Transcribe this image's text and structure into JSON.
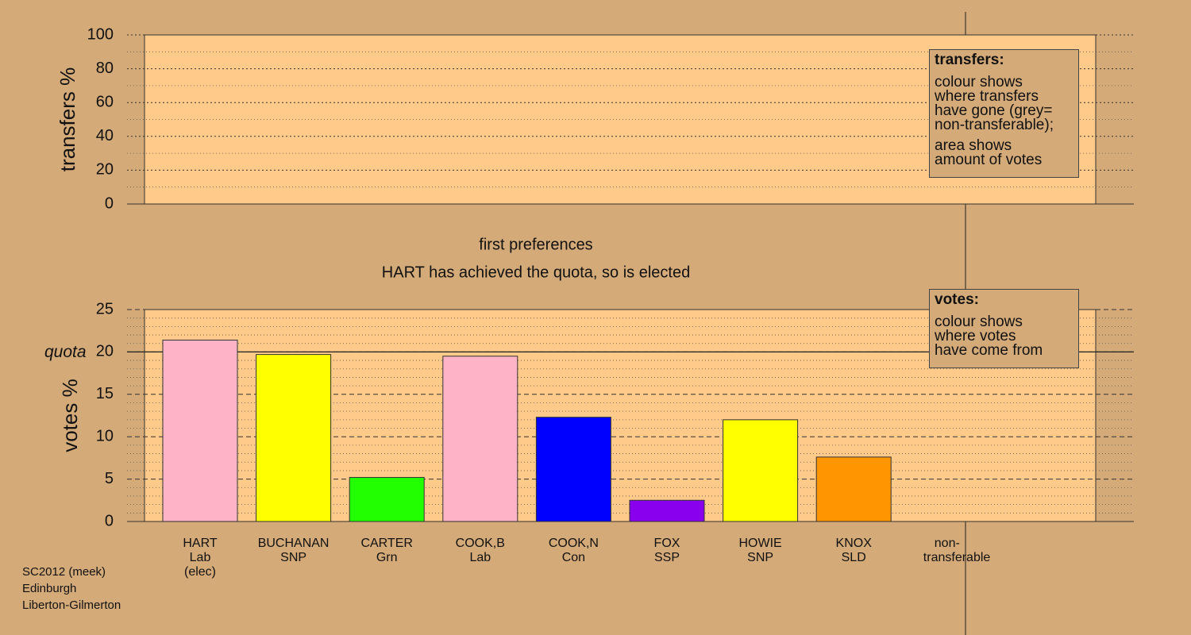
{
  "chart_data": [
    {
      "type": "bar",
      "ylabel": "transfers %",
      "ylim": [
        0,
        100
      ],
      "yticks": [
        0,
        20,
        40,
        60,
        80,
        100
      ],
      "legend": {
        "title": "transfers:",
        "paragraphs": [
          [
            "colour shows",
            "where transfers",
            "have gone (grey=",
            "non-transferable);"
          ],
          [
            "area shows",
            "amount of votes"
          ]
        ]
      }
    },
    {
      "type": "bar",
      "title": "first preferences",
      "subtitle": "HART has achieved the quota, so is elected",
      "ylabel": "votes %",
      "ylim": [
        0,
        25
      ],
      "yticks": [
        0,
        5,
        10,
        15,
        20,
        25
      ],
      "quota": 20,
      "quota_label": "quota",
      "categories": [
        "HART",
        "BUCHANAN",
        "CARTER",
        "COOK,B",
        "COOK,N",
        "FOX",
        "HOWIE",
        "KNOX",
        "non-transferable"
      ],
      "parties": [
        "Lab",
        "SNP",
        "Grn",
        "Lab",
        "Con",
        "SSP",
        "SNP",
        "SLD",
        null
      ],
      "notes": [
        "(elec)",
        null,
        null,
        null,
        null,
        null,
        null,
        null,
        null
      ],
      "values": [
        21.4,
        19.7,
        5.2,
        19.5,
        12.3,
        2.5,
        12.0,
        7.6,
        null
      ],
      "colors": [
        "#ffb3c6",
        "#ffff00",
        "#22ff00",
        "#ffb3c6",
        "#0000ff",
        "#8800ee",
        "#ffff00",
        "#ff9500",
        null
      ],
      "legend": {
        "title": "votes:",
        "paragraphs": [
          [
            "colour shows",
            "where votes",
            "have come from"
          ]
        ]
      }
    }
  ],
  "footer": [
    "SC2012 (meek)",
    "Edinburgh",
    "Liberton-Gilmerton"
  ]
}
